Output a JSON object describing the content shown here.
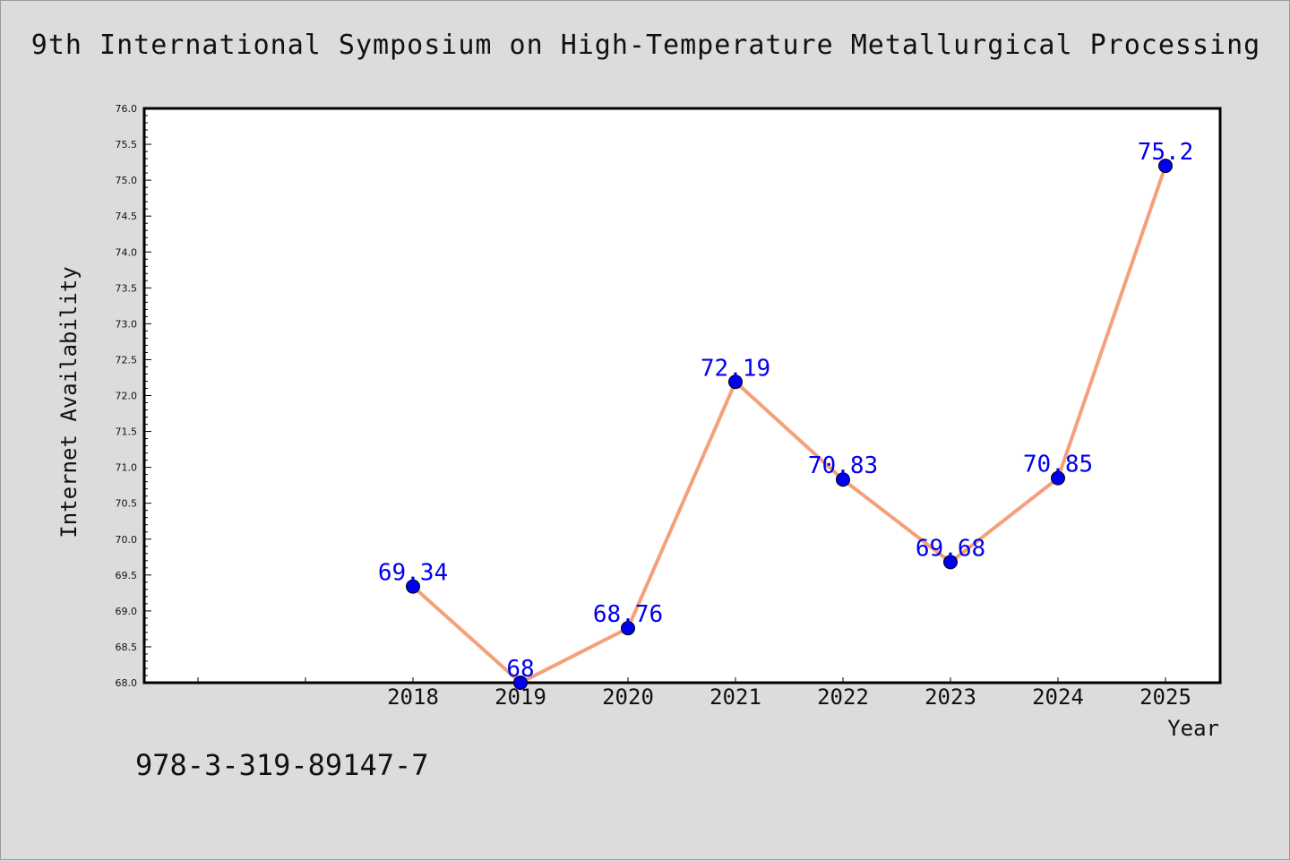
{
  "chart_data": {
    "type": "line",
    "title": "9th International Symposium on High-Temperature Metallurgical Processing",
    "xlabel": "Year",
    "ylabel": "Internet Availability",
    "categories": [
      "2018",
      "2019",
      "2020",
      "2021",
      "2022",
      "2023",
      "2024",
      "2025"
    ],
    "series": [
      {
        "values": [
          69.34,
          68,
          68.76,
          72.19,
          70.83,
          69.68,
          70.85,
          75.2
        ],
        "labels": [
          "69.34",
          "68",
          "68.76",
          "72.19",
          "70.83",
          "69.68",
          "70.85",
          "75.2"
        ]
      }
    ],
    "ylim": [
      68.0,
      76.0
    ],
    "yticks": [
      "68.0",
      "68.5",
      "69.0",
      "69.5",
      "70.0",
      "70.5",
      "71.0",
      "71.5",
      "72.0",
      "72.5",
      "73.0",
      "73.5",
      "74.0",
      "74.5",
      "75.0",
      "75.5",
      "76.0"
    ],
    "grid": false,
    "colors": {
      "line": "#f4a07a",
      "marker": "#0000ee",
      "label": "#0000ee",
      "background": "#dcdcdc",
      "plot_area": "#ffffff"
    }
  },
  "footer": {
    "isbn": "978-3-319-89147-7"
  }
}
